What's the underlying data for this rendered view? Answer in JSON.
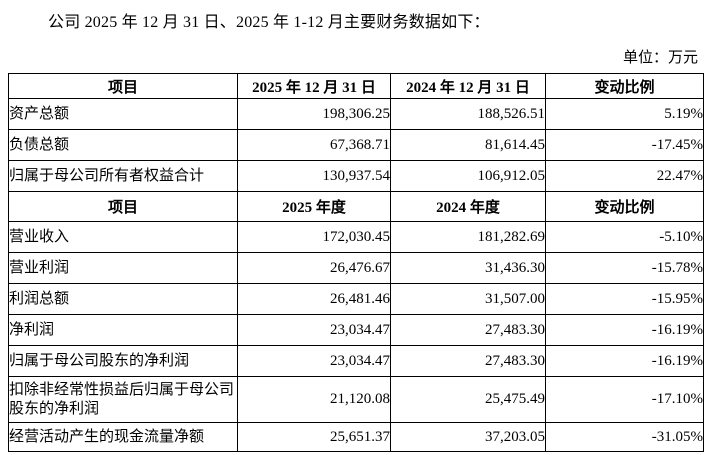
{
  "page": {
    "title": "公司 2025 年 12 月 31 日、2025 年 1-12 月主要财务数据如下：",
    "unit_label": "单位：万元"
  },
  "table": {
    "section1": {
      "headers": [
        "项目",
        "2025 年 12 月 31 日",
        "2024 年 12 月 31 日",
        "变动比例"
      ],
      "rows": [
        {
          "item": "资产总额",
          "v2025": "198,306.25",
          "v2024": "188,526.51",
          "change": "5.19%"
        },
        {
          "item": "负债总额",
          "v2025": "67,368.71",
          "v2024": "81,614.45",
          "change": "-17.45%"
        },
        {
          "item": "归属于母公司所有者权益合计",
          "v2025": "130,937.54",
          "v2024": "106,912.05",
          "change": "22.47%"
        }
      ]
    },
    "section2": {
      "headers": [
        "项目",
        "2025 年度",
        "2024 年度",
        "变动比例"
      ],
      "rows": [
        {
          "item": "营业收入",
          "v2025": "172,030.45",
          "v2024": "181,282.69",
          "change": "-5.10%"
        },
        {
          "item": "营业利润",
          "v2025": "26,476.67",
          "v2024": "31,436.30",
          "change": "-15.78%"
        },
        {
          "item": "利润总额",
          "v2025": "26,481.46",
          "v2024": "31,507.00",
          "change": "-15.95%"
        },
        {
          "item": "净利润",
          "v2025": "23,034.47",
          "v2024": "27,483.30",
          "change": "-16.19%"
        },
        {
          "item": "归属于母公司股东的净利润",
          "v2025": "23,034.47",
          "v2024": "27,483.30",
          "change": "-16.19%"
        },
        {
          "item": "扣除非经常性损益后归属于母公司股东的净利润",
          "v2025": "21,120.08",
          "v2024": "25,475.49",
          "change": "-17.10%"
        },
        {
          "item": "经营活动产生的现金流量净额",
          "v2025": "25,651.37",
          "v2024": "37,203.05",
          "change": "-31.05%"
        }
      ]
    }
  }
}
